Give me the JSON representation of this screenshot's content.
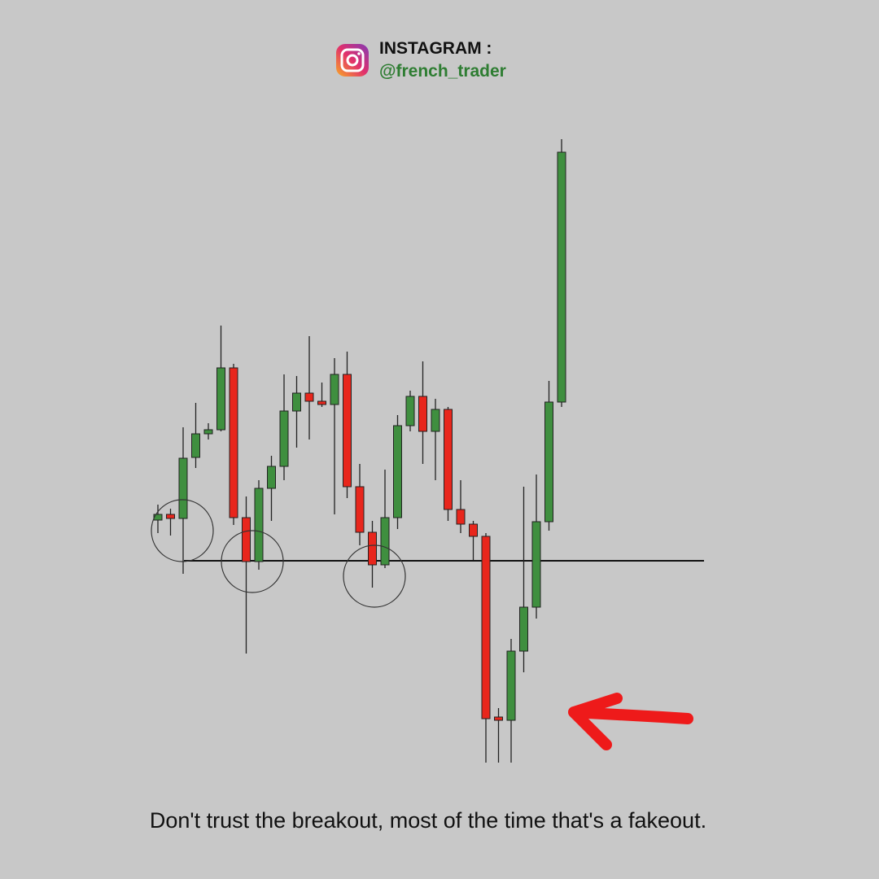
{
  "header": {
    "title": "INSTAGRAM :",
    "handle": "@french_trader"
  },
  "caption": "Don't trust the breakout, most of the time that's a fakeout.",
  "chart_data": {
    "type": "candlestick",
    "up_color": "#3f8f3f",
    "down_color": "#e8261c",
    "ylim": [
      -39.1,
      68.9
    ],
    "support": 0,
    "open": [
      5.0,
      5.7,
      5.2,
      12.7,
      15.6,
      16.1,
      23.7,
      5.3,
      -0.1,
      8.9,
      11.6,
      18.4,
      20.6,
      19.6,
      19.2,
      22.9,
      9.1,
      3.5,
      -0.5,
      5.3,
      16.6,
      20.2,
      15.9,
      18.6,
      6.3,
      4.5,
      3.0,
      -19.2,
      -19.6,
      -11.1,
      -5.7,
      4.8,
      19.5
    ],
    "high": [
      6.9,
      6.4,
      16.4,
      19.4,
      16.9,
      28.9,
      24.2,
      7.9,
      9.9,
      12.9,
      22.9,
      22.7,
      27.6,
      21.9,
      24.9,
      25.7,
      11.9,
      4.9,
      11.2,
      17.9,
      20.9,
      24.5,
      19.9,
      18.9,
      9.9,
      4.9,
      3.4,
      -18.1,
      -9.6,
      9.1,
      10.6,
      22.1,
      51.8
    ],
    "low": [
      3.4,
      3.1,
      -1.6,
      11.4,
      14.9,
      15.9,
      4.4,
      -11.4,
      -1.1,
      4.9,
      9.9,
      13.9,
      14.9,
      18.9,
      5.7,
      7.7,
      1.9,
      -3.3,
      -0.9,
      3.9,
      15.9,
      11.9,
      9.9,
      4.9,
      3.4,
      0.1,
      -24.8,
      -24.8,
      -24.8,
      -13.7,
      -7.1,
      3.7,
      18.9
    ],
    "close": [
      5.7,
      5.2,
      12.6,
      15.6,
      16.1,
      23.7,
      5.3,
      -0.1,
      8.9,
      11.6,
      18.4,
      20.6,
      19.6,
      19.2,
      22.9,
      9.1,
      3.5,
      -0.5,
      5.3,
      16.6,
      20.2,
      15.9,
      18.6,
      6.3,
      4.5,
      3.0,
      -19.4,
      -19.6,
      -11.1,
      -5.7,
      4.8,
      19.5,
      50.2
    ]
  }
}
